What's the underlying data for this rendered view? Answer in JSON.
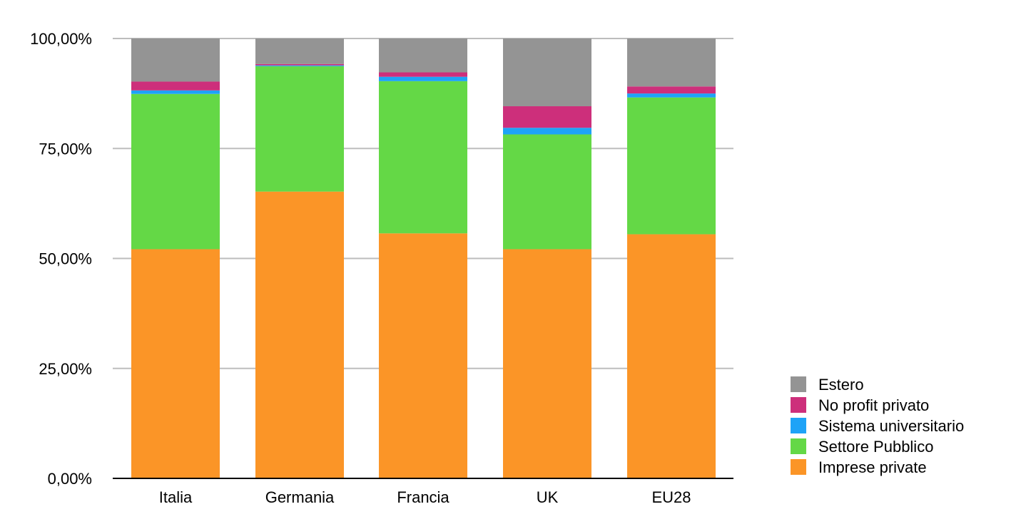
{
  "chart_data": {
    "type": "bar",
    "stacked": true,
    "categories": [
      "Italia",
      "Germania",
      "Francia",
      "UK",
      "EU28"
    ],
    "series": [
      {
        "name": "Imprese private",
        "color": "#FB9527",
        "values": [
          52.1,
          65.2,
          55.7,
          52.1,
          55.5
        ]
      },
      {
        "name": "Settore Pubblico",
        "color": "#64D846",
        "values": [
          35.3,
          28.5,
          34.6,
          26.1,
          31.1
        ]
      },
      {
        "name": "Sistema universitario",
        "color": "#1EA3F7",
        "values": [
          0.8,
          0.2,
          1.0,
          1.5,
          0.9
        ]
      },
      {
        "name": "No profit privato",
        "color": "#CD2F7B",
        "values": [
          2.0,
          0.3,
          1.0,
          4.9,
          1.6
        ]
      },
      {
        "name": "Estero",
        "color": "#949494",
        "values": [
          9.8,
          5.8,
          7.7,
          15.4,
          10.9
        ]
      }
    ],
    "ylim": [
      0,
      100
    ],
    "yticks": [
      "0,00%",
      "25,00%",
      "50,00%",
      "75,00%",
      "100,00%"
    ],
    "ytick_values": [
      0,
      25,
      50,
      75,
      100
    ],
    "grid": true,
    "legend_position": "bottom-right",
    "legend_order": [
      "Estero",
      "No profit privato",
      "Sistema universitario",
      "Settore Pubblico",
      "Imprese private"
    ]
  }
}
